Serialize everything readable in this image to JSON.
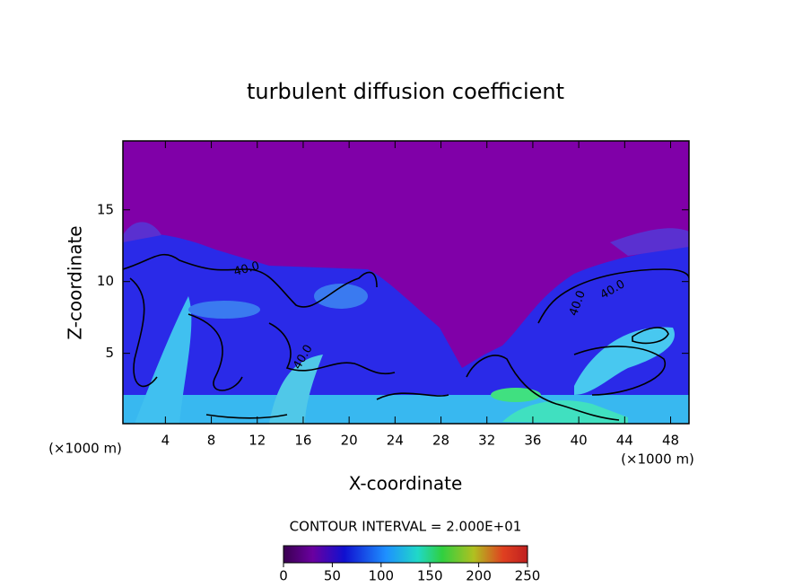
{
  "chart_data": {
    "type": "contour",
    "title": "turbulent diffusion coefficient",
    "x_label": "X-coordinate",
    "y_label": "Z-coordinate",
    "x_unit": "(×1000 m)",
    "y_unit": "(×1000 m)",
    "xlim": [
      0.3,
      49.6
    ],
    "xticks": [
      4,
      8,
      12,
      16,
      20,
      24,
      28,
      32,
      36,
      40,
      44,
      48
    ],
    "ylim": [
      0.1,
      19.8
    ],
    "yticks": [
      5,
      10,
      15
    ],
    "contour_labels": [
      "40.0",
      "40.0",
      "40.0",
      "40.0"
    ],
    "colorbar_title": "CONTOUR INTERVAL = 2.000E+01",
    "clim": [
      0,
      250
    ],
    "colorbar_ticks": [
      0,
      50,
      100,
      150,
      200,
      250
    ]
  }
}
